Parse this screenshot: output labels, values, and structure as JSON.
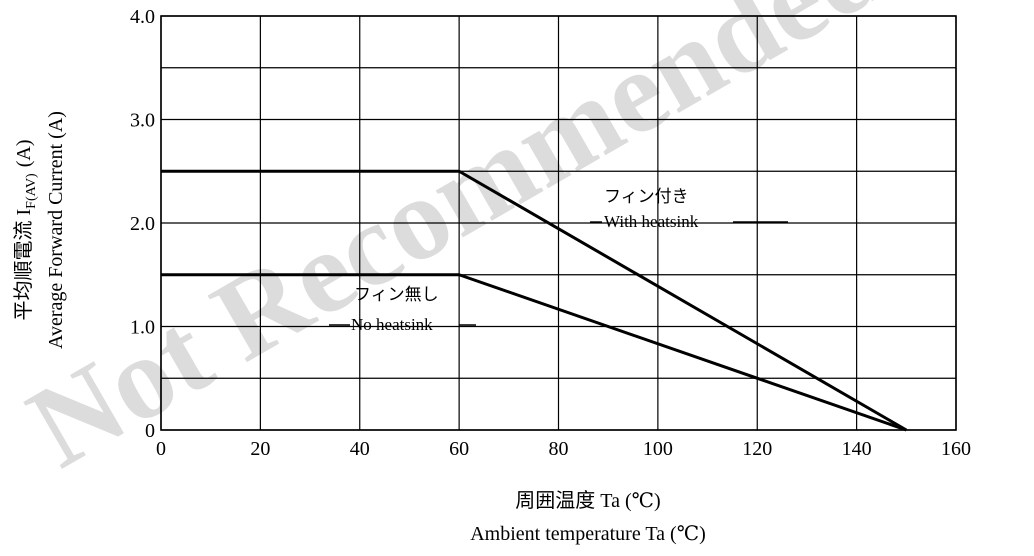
{
  "watermark": "Not Recommended",
  "chart_data": {
    "type": "line",
    "title": "",
    "xlabel_jp": "周囲温度 Ta (℃)",
    "xlabel_en": "Ambient temperature  Ta (℃)",
    "ylabel_jp": "平均順電流 I",
    "ylabel_jp_sub": "F(AV)",
    "ylabel_jp_unit": "(A)",
    "ylabel_en": "Average Forward Current (A)",
    "xlim": [
      0,
      160
    ],
    "ylim": [
      0,
      4.0
    ],
    "x_ticks": [
      "0",
      "20",
      "40",
      "60",
      "80",
      "100",
      "120",
      "140",
      "160"
    ],
    "x_tick_values": [
      0,
      20,
      40,
      60,
      80,
      100,
      120,
      140,
      160
    ],
    "y_ticks": [
      "0",
      "1.0",
      "2.0",
      "3.0",
      "4.0"
    ],
    "y_tick_values": [
      0,
      1.0,
      2.0,
      3.0,
      4.0
    ],
    "x_grid": [
      0,
      20,
      40,
      60,
      80,
      100,
      120,
      140,
      160
    ],
    "y_grid": [
      0,
      0.5,
      1.0,
      1.5,
      2.0,
      2.5,
      3.0,
      3.5,
      4.0
    ],
    "grid": true,
    "series": [
      {
        "key": "with_heatsink",
        "name_jp": "フィン付き",
        "name_en": "With heatsink",
        "x": [
          0,
          60,
          150
        ],
        "y": [
          2.5,
          2.5,
          0
        ]
      },
      {
        "key": "no_heatsink",
        "name_jp": "フィン無し",
        "name_en": "No heatsink",
        "x": [
          0,
          60,
          150
        ],
        "y": [
          1.5,
          1.5,
          0
        ]
      }
    ]
  }
}
